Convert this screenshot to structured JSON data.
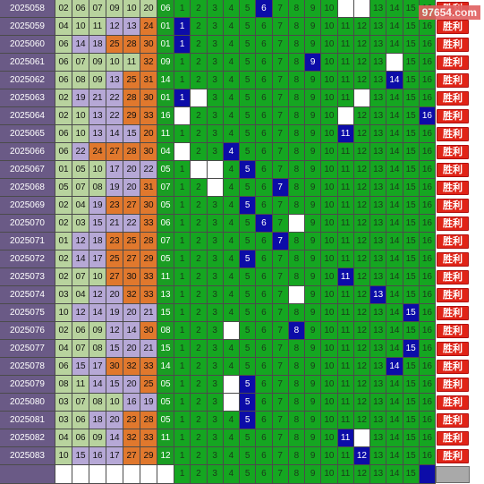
{
  "watermark": "97654.com",
  "result_label": "胜利",
  "colors": {
    "period_bg": "#6a5a86",
    "green_ball": "#b8d39e",
    "purple_ball": "#b6a8d6",
    "orange_ball": "#e0782d",
    "span_bg": "#1a9d23",
    "dist_bg": "#15a621",
    "hit_bg": "#0c0ca8",
    "result_bg": "#e02417"
  },
  "rows": [
    {
      "period": "2025058",
      "nums": [
        "02",
        "06",
        "07",
        "09",
        "10",
        "20"
      ],
      "groups": [
        "g",
        "g",
        "g",
        "g",
        "g",
        "g"
      ],
      "span": "06",
      "span_plain": false,
      "hits": [
        6
      ],
      "whites": [
        11,
        12
      ]
    },
    {
      "period": "2025059",
      "nums": [
        "04",
        "10",
        "11",
        "12",
        "13",
        "24"
      ],
      "groups": [
        "g",
        "g",
        "g",
        "p",
        "p",
        "o"
      ],
      "span": "01",
      "span_plain": false,
      "hits": [
        1
      ],
      "whites": []
    },
    {
      "period": "2025060",
      "nums": [
        "06",
        "14",
        "18",
        "25",
        "28",
        "30"
      ],
      "groups": [
        "g",
        "p",
        "p",
        "o",
        "o",
        "o"
      ],
      "span": "01",
      "span_plain": false,
      "hits": [
        1
      ],
      "whites": []
    },
    {
      "period": "2025061",
      "nums": [
        "06",
        "07",
        "09",
        "10",
        "11",
        "32"
      ],
      "groups": [
        "g",
        "g",
        "g",
        "g",
        "g",
        "o"
      ],
      "span": "09",
      "span_plain": false,
      "hits": [
        9
      ],
      "whites": [
        14
      ]
    },
    {
      "period": "2025062",
      "nums": [
        "06",
        "08",
        "09",
        "13",
        "25",
        "31"
      ],
      "groups": [
        "g",
        "g",
        "g",
        "p",
        "o",
        "o"
      ],
      "span": "14",
      "span_plain": false,
      "hits": [
        14
      ],
      "whites": []
    },
    {
      "period": "2025063",
      "nums": [
        "02",
        "19",
        "21",
        "22",
        "28",
        "30"
      ],
      "groups": [
        "g",
        "p",
        "p",
        "p",
        "o",
        "o"
      ],
      "span": "01",
      "span_plain": false,
      "hits": [
        1
      ],
      "whites": [
        2,
        12
      ]
    },
    {
      "period": "2025064",
      "nums": [
        "02",
        "10",
        "13",
        "22",
        "29",
        "33"
      ],
      "groups": [
        "g",
        "g",
        "p",
        "p",
        "o",
        "o"
      ],
      "span": "16",
      "span_plain": false,
      "hits": [
        16
      ],
      "whites": [
        1,
        11
      ]
    },
    {
      "period": "2025065",
      "nums": [
        "06",
        "10",
        "13",
        "14",
        "15",
        "20"
      ],
      "groups": [
        "g",
        "g",
        "p",
        "p",
        "p",
        "o"
      ],
      "span": "11",
      "span_plain": false,
      "hits": [
        11
      ],
      "whites": []
    },
    {
      "period": "2025066",
      "nums": [
        "06",
        "22",
        "24",
        "27",
        "28",
        "30"
      ],
      "groups": [
        "g",
        "p",
        "o",
        "o",
        "o",
        "o"
      ],
      "span": "04",
      "span_plain": false,
      "hits": [
        4
      ],
      "whites": [
        1
      ]
    },
    {
      "period": "2025067",
      "nums": [
        "01",
        "05",
        "10",
        "17",
        "20",
        "22"
      ],
      "groups": [
        "g",
        "g",
        "g",
        "p",
        "p",
        "p"
      ],
      "span": "05",
      "span_plain": false,
      "hits": [
        5
      ],
      "whites": [
        2,
        3
      ]
    },
    {
      "period": "2025068",
      "nums": [
        "05",
        "07",
        "08",
        "19",
        "20",
        "31"
      ],
      "groups": [
        "g",
        "g",
        "g",
        "p",
        "p",
        "o"
      ],
      "span": "07",
      "span_plain": false,
      "hits": [
        7
      ],
      "whites": [
        3
      ]
    },
    {
      "period": "2025069",
      "nums": [
        "02",
        "04",
        "19",
        "23",
        "27",
        "30"
      ],
      "groups": [
        "g",
        "g",
        "p",
        "o",
        "o",
        "o"
      ],
      "span": "05",
      "span_plain": false,
      "hits": [
        5
      ],
      "whites": []
    },
    {
      "period": "2025070",
      "nums": [
        "02",
        "03",
        "15",
        "21",
        "22",
        "33"
      ],
      "groups": [
        "g",
        "g",
        "p",
        "p",
        "p",
        "o"
      ],
      "span": "06",
      "span_plain": false,
      "hits": [
        6
      ],
      "whites": [
        8
      ]
    },
    {
      "period": "2025071",
      "nums": [
        "01",
        "12",
        "18",
        "23",
        "25",
        "28"
      ],
      "groups": [
        "g",
        "p",
        "p",
        "o",
        "o",
        "o"
      ],
      "span": "07",
      "span_plain": false,
      "hits": [
        7
      ],
      "whites": []
    },
    {
      "period": "2025072",
      "nums": [
        "02",
        "14",
        "17",
        "25",
        "27",
        "29"
      ],
      "groups": [
        "g",
        "p",
        "p",
        "o",
        "o",
        "o"
      ],
      "span": "05",
      "span_plain": false,
      "hits": [
        5
      ],
      "whites": []
    },
    {
      "period": "2025073",
      "nums": [
        "02",
        "07",
        "10",
        "27",
        "30",
        "33"
      ],
      "groups": [
        "g",
        "g",
        "g",
        "o",
        "o",
        "o"
      ],
      "span": "11",
      "span_plain": false,
      "hits": [
        11
      ],
      "whites": []
    },
    {
      "period": "2025074",
      "nums": [
        "03",
        "04",
        "12",
        "20",
        "32",
        "33"
      ],
      "groups": [
        "g",
        "g",
        "p",
        "p",
        "o",
        "o"
      ],
      "span": "13",
      "span_plain": false,
      "hits": [
        13
      ],
      "whites": [
        8
      ]
    },
    {
      "period": "2025075",
      "nums": [
        "10",
        "12",
        "14",
        "19",
        "20",
        "21"
      ],
      "groups": [
        "g",
        "p",
        "p",
        "p",
        "p",
        "p"
      ],
      "span": "15",
      "span_plain": false,
      "hits": [
        15
      ],
      "whites": []
    },
    {
      "period": "2025076",
      "nums": [
        "02",
        "06",
        "09",
        "12",
        "14",
        "30"
      ],
      "groups": [
        "g",
        "g",
        "g",
        "p",
        "p",
        "o"
      ],
      "span": "08",
      "span_plain": false,
      "hits": [
        8
      ],
      "whites": [
        4
      ]
    },
    {
      "period": "2025077",
      "nums": [
        "04",
        "07",
        "08",
        "15",
        "20",
        "21"
      ],
      "groups": [
        "g",
        "g",
        "g",
        "p",
        "p",
        "p"
      ],
      "span": "15",
      "span_plain": false,
      "hits": [
        15
      ],
      "whites": []
    },
    {
      "period": "2025078",
      "nums": [
        "06",
        "15",
        "17",
        "30",
        "32",
        "33"
      ],
      "groups": [
        "g",
        "p",
        "p",
        "o",
        "o",
        "o"
      ],
      "span": "14",
      "span_plain": false,
      "hits": [
        14
      ],
      "whites": []
    },
    {
      "period": "2025079",
      "nums": [
        "08",
        "11",
        "14",
        "15",
        "20",
        "25"
      ],
      "groups": [
        "g",
        "g",
        "p",
        "p",
        "p",
        "o"
      ],
      "span": "05",
      "span_plain": false,
      "hits": [
        5
      ],
      "whites": [
        4
      ]
    },
    {
      "period": "2025080",
      "nums": [
        "03",
        "07",
        "08",
        "10",
        "16",
        "19"
      ],
      "groups": [
        "g",
        "g",
        "g",
        "g",
        "p",
        "p"
      ],
      "span": "05",
      "span_plain": false,
      "hits": [
        5
      ],
      "whites": [
        4
      ]
    },
    {
      "period": "2025081",
      "nums": [
        "03",
        "06",
        "18",
        "20",
        "23",
        "28"
      ],
      "groups": [
        "g",
        "g",
        "p",
        "p",
        "o",
        "o"
      ],
      "span": "05",
      "span_plain": false,
      "hits": [
        5
      ],
      "whites": []
    },
    {
      "period": "2025082",
      "nums": [
        "04",
        "06",
        "09",
        "14",
        "32",
        "33"
      ],
      "groups": [
        "g",
        "g",
        "g",
        "p",
        "o",
        "o"
      ],
      "span": "11",
      "span_plain": false,
      "hits": [
        11
      ],
      "whites": [
        12
      ]
    },
    {
      "period": "2025083",
      "nums": [
        "10",
        "15",
        "16",
        "17",
        "27",
        "29"
      ],
      "groups": [
        "g",
        "p",
        "p",
        "p",
        "o",
        "o"
      ],
      "span": "12",
      "span_plain": false,
      "hits": [
        12
      ],
      "whites": []
    }
  ],
  "footer": {
    "cols": [
      "1",
      "2",
      "3",
      "4",
      "5",
      "6",
      "7",
      "8",
      "9",
      "10",
      "11",
      "12",
      "13",
      "14",
      "15",
      "16"
    ],
    "hit_col": 16
  }
}
